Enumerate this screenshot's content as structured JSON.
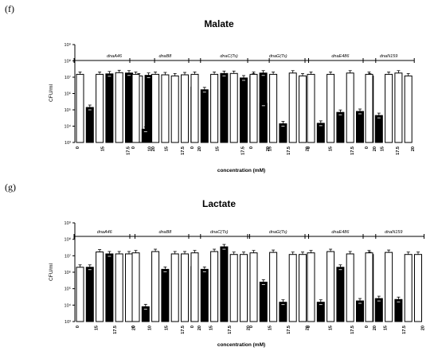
{
  "figure": {
    "panel_f_letter": "(f)",
    "panel_g_letter": "(g)"
  },
  "chart_data": [
    {
      "type": "bar",
      "title": "Malate",
      "xlabel": "concentration (mM)",
      "ylabel": "CFU/ml",
      "yscale": "log",
      "ylim": [
        1000,
        1000000000
      ],
      "yticks": [
        "10³",
        "10⁴",
        "10⁵",
        "10⁶",
        "10⁷",
        "10⁸",
        "10⁹"
      ],
      "legend": "none",
      "groups": [
        {
          "strain": "dnaA46",
          "ticks": [
            "0",
            "15",
            "17.5",
            "20"
          ],
          "bars": [
            {
              "fill": "white",
              "value": 15000000
            },
            {
              "fill": "black",
              "value": 140000
            },
            {
              "fill": "white",
              "value": 15000000
            },
            {
              "fill": "black",
              "value": 16000000
            },
            {
              "fill": "white",
              "value": 19000000
            },
            {
              "fill": "black",
              "value": 18000000
            },
            {
              "fill": "white",
              "value": 12000000
            },
            {
              "fill": "black",
              "value": 13000000
            }
          ]
        },
        {
          "strain": "dnaB8",
          "ticks": [
            "0",
            "10",
            "15",
            "17.5",
            "20"
          ],
          "bars": [
            {
              "fill": "white",
              "value": 15000000
            },
            {
              "fill": "black",
              "value": 6500
            },
            {
              "fill": "white",
              "value": 15000000
            },
            {
              "fill": "white",
              "value": 14000000
            },
            {
              "fill": "white",
              "value": 12000000
            },
            {
              "fill": "white",
              "value": 14000000
            },
            {
              "fill": "black",
              "value": 2500000
            }
          ]
        },
        {
          "strain": "dnaC(Ts)",
          "ticks": [
            "0",
            "15",
            "17.5",
            "20"
          ],
          "bars": [
            {
              "fill": "white",
              "value": 15000000
            },
            {
              "fill": "black",
              "value": 1700000
            },
            {
              "fill": "white",
              "value": 15000000
            },
            {
              "fill": "black",
              "value": 17000000
            },
            {
              "fill": "white",
              "value": 17000000
            },
            {
              "fill": "black",
              "value": 9000000
            },
            {
              "fill": "white",
              "value": 12000000
            },
            {
              "fill": "black",
              "value": 18000000
            }
          ]
        },
        {
          "strain": "dnaG(Ts)",
          "ticks": [
            "0",
            "15",
            "17.5",
            "20"
          ],
          "bars": [
            {
              "fill": "white",
              "value": 15000000
            },
            {
              "fill": "black",
              "value": 250000
            },
            {
              "fill": "white",
              "value": 15000000
            },
            {
              "fill": "black",
              "value": 14000
            },
            {
              "fill": "white",
              "value": 18000000
            },
            {
              "fill": "white",
              "value": 12000000
            }
          ]
        },
        {
          "strain": "dnaE486",
          "ticks": [
            "0",
            "15",
            "17.5",
            "20"
          ],
          "bars": [
            {
              "fill": "white",
              "value": 15000000
            },
            {
              "fill": "black",
              "value": 15000
            },
            {
              "fill": "white",
              "value": 15000000
            },
            {
              "fill": "black",
              "value": 70000
            },
            {
              "fill": "white",
              "value": 18000000
            },
            {
              "fill": "black",
              "value": 80000
            },
            {
              "fill": "white",
              "value": 12000000
            }
          ]
        },
        {
          "strain": "dnaN159",
          "ticks": [
            "0",
            "15",
            "17.5",
            "20"
          ],
          "bars": [
            {
              "fill": "white",
              "value": 15000000
            },
            {
              "fill": "black",
              "value": 45000
            },
            {
              "fill": "white",
              "value": 15000000
            },
            {
              "fill": "white",
              "value": 18000000
            },
            {
              "fill": "white",
              "value": 12000000
            }
          ]
        }
      ]
    },
    {
      "type": "bar",
      "title": "Lactate",
      "xlabel": "concentration (mM)",
      "ylabel": "CFU/ml",
      "yscale": "log",
      "ylim": [
        1000,
        1000000000
      ],
      "yticks": [
        "10³",
        "10⁴",
        "10⁵",
        "10⁶",
        "10⁷",
        "10⁸",
        "10⁹"
      ],
      "legend": "none",
      "groups": [
        {
          "strain": "dnaA46",
          "ticks": [
            "0",
            "15",
            "17.5",
            "20"
          ],
          "bars": [
            {
              "fill": "white",
              "value": 2000000
            },
            {
              "fill": "black",
              "value": 2000000
            },
            {
              "fill": "white",
              "value": 17000000
            },
            {
              "fill": "black",
              "value": 13000000
            },
            {
              "fill": "white",
              "value": 13000000
            },
            {
              "fill": "white",
              "value": 13000000
            }
          ]
        },
        {
          "strain": "dnaB8",
          "ticks": [
            "0",
            "10",
            "15",
            "17.5",
            "20"
          ],
          "bars": [
            {
              "fill": "white",
              "value": 15000000
            },
            {
              "fill": "black",
              "value": 8000
            },
            {
              "fill": "white",
              "value": 18000000
            },
            {
              "fill": "black",
              "value": 1500000
            },
            {
              "fill": "white",
              "value": 13000000
            },
            {
              "fill": "white",
              "value": 13000000
            },
            {
              "fill": "black",
              "value": 2200000
            }
          ]
        },
        {
          "strain": "dnaC(Ts)",
          "ticks": [
            "0",
            "15",
            "17.5",
            "20"
          ],
          "bars": [
            {
              "fill": "white",
              "value": 15000000
            },
            {
              "fill": "black",
              "value": 1500000
            },
            {
              "fill": "white",
              "value": 18000000
            },
            {
              "fill": "black",
              "value": 35000000
            },
            {
              "fill": "white",
              "value": 12000000
            },
            {
              "fill": "white",
              "value": 12000000
            }
          ]
        },
        {
          "strain": "dnaG(Ts)",
          "ticks": [
            "0",
            "15",
            "17.5",
            "20"
          ],
          "bars": [
            {
              "fill": "white",
              "value": 15000000
            },
            {
              "fill": "black",
              "value": 250000
            },
            {
              "fill": "white",
              "value": 16000000
            },
            {
              "fill": "black",
              "value": 15000
            },
            {
              "fill": "white",
              "value": 12000000
            },
            {
              "fill": "white",
              "value": 12000000
            }
          ]
        },
        {
          "strain": "dnaE486",
          "ticks": [
            "0",
            "15",
            "17.5",
            "20"
          ],
          "bars": [
            {
              "fill": "white",
              "value": 15000000
            },
            {
              "fill": "black",
              "value": 15000
            },
            {
              "fill": "white",
              "value": 18000000
            },
            {
              "fill": "black",
              "value": 2000000
            },
            {
              "fill": "white",
              "value": 13000000
            },
            {
              "fill": "black",
              "value": 18000
            },
            {
              "fill": "white",
              "value": 12000000
            }
          ]
        },
        {
          "strain": "dnaN159",
          "ticks": [
            "0",
            "15",
            "17.5",
            "20"
          ],
          "bars": [
            {
              "fill": "white",
              "value": 15000000
            },
            {
              "fill": "black",
              "value": 25000
            },
            {
              "fill": "white",
              "value": 16000000
            },
            {
              "fill": "black",
              "value": 22000
            },
            {
              "fill": "white",
              "value": 12000000
            },
            {
              "fill": "white",
              "value": 12000000
            }
          ]
        }
      ]
    }
  ]
}
